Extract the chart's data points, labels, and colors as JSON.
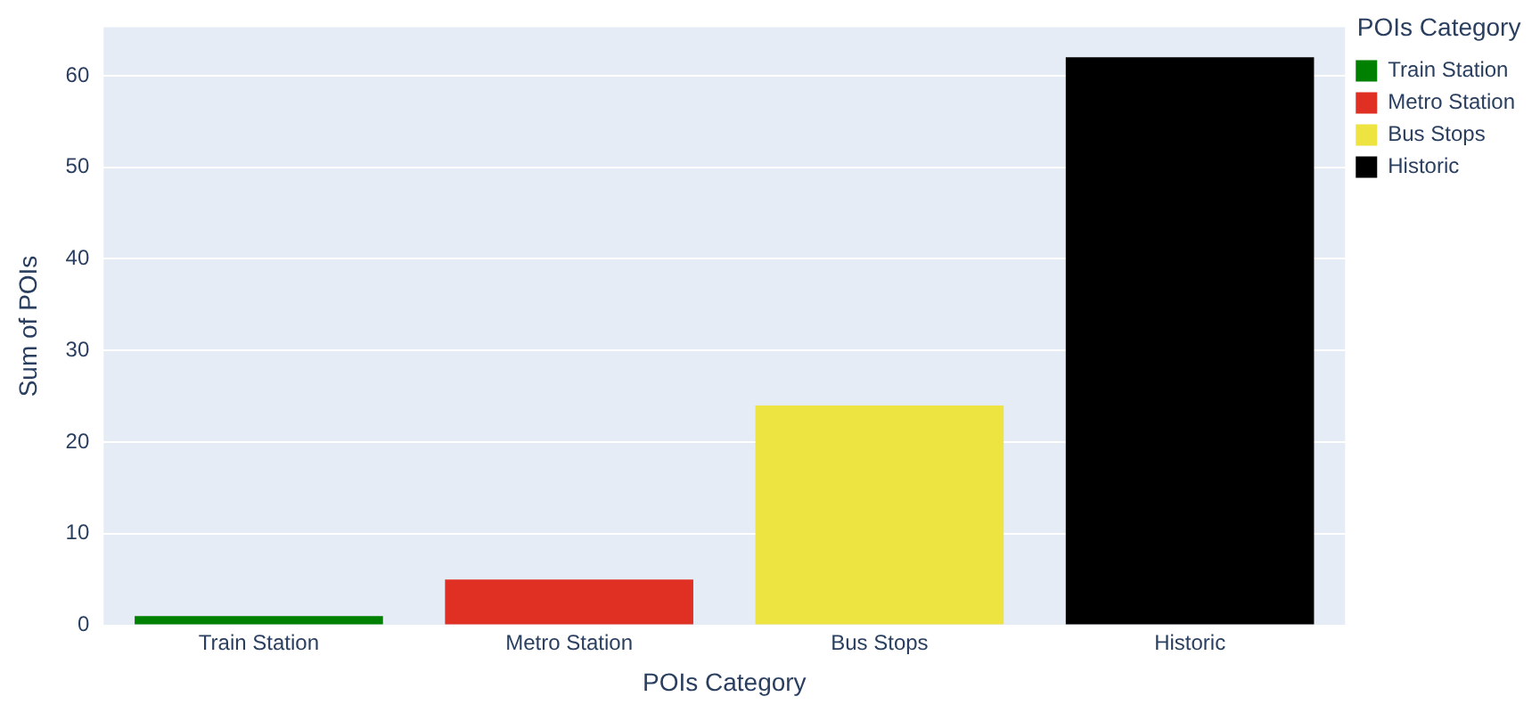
{
  "chart_data": {
    "type": "bar",
    "xlabel": "POIs Category",
    "ylabel": "Sum of POIs",
    "legend_title": "POIs Category",
    "categories": [
      "Train Station",
      "Metro Station",
      "Bus Stops",
      "Historic"
    ],
    "series": [
      {
        "name": "Train Station",
        "color": "#008000",
        "values": [
          1,
          null,
          null,
          null
        ]
      },
      {
        "name": "Metro Station",
        "color": "#e03024",
        "values": [
          null,
          5,
          null,
          null
        ]
      },
      {
        "name": "Bus Stops",
        "color": "#ede442",
        "values": [
          null,
          null,
          24,
          null
        ]
      },
      {
        "name": "Historic",
        "color": "#000000",
        "values": [
          null,
          null,
          null,
          62
        ]
      }
    ],
    "ylim": [
      0,
      65.3
    ],
    "yticks": [
      0,
      10,
      20,
      30,
      40,
      50,
      60
    ],
    "grid": "y",
    "legend": "top right"
  }
}
